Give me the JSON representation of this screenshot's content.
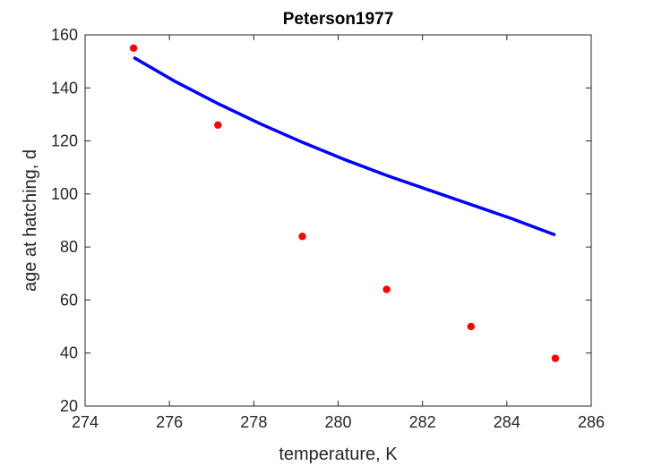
{
  "chart_data": {
    "type": "scatter",
    "title": "Peterson1977",
    "xlabel": "temperature, K",
    "ylabel": "age at hatching, d",
    "xlim": [
      274,
      286
    ],
    "ylim": [
      20,
      160
    ],
    "xticks": [
      274,
      276,
      278,
      280,
      282,
      284,
      286
    ],
    "yticks": [
      20,
      40,
      60,
      80,
      100,
      120,
      140,
      160
    ],
    "grid": false,
    "box": true,
    "series": [
      {
        "kind": "points",
        "color": "#ff0000",
        "x": [
          275.15,
          277.15,
          279.15,
          281.15,
          283.15,
          285.15
        ],
        "y": [
          155,
          126,
          84,
          64,
          50,
          38
        ]
      },
      {
        "kind": "line",
        "color": "#0000ff",
        "x": [
          275.15,
          276.15,
          277.15,
          278.15,
          279.15,
          280.15,
          281.15,
          282.15,
          283.15,
          284.15,
          285.15
        ],
        "y": [
          151.5,
          142.3,
          134.1,
          126.5,
          119.5,
          113.0,
          107.0,
          101.5,
          96.0,
          90.5,
          84.5
        ]
      }
    ]
  }
}
